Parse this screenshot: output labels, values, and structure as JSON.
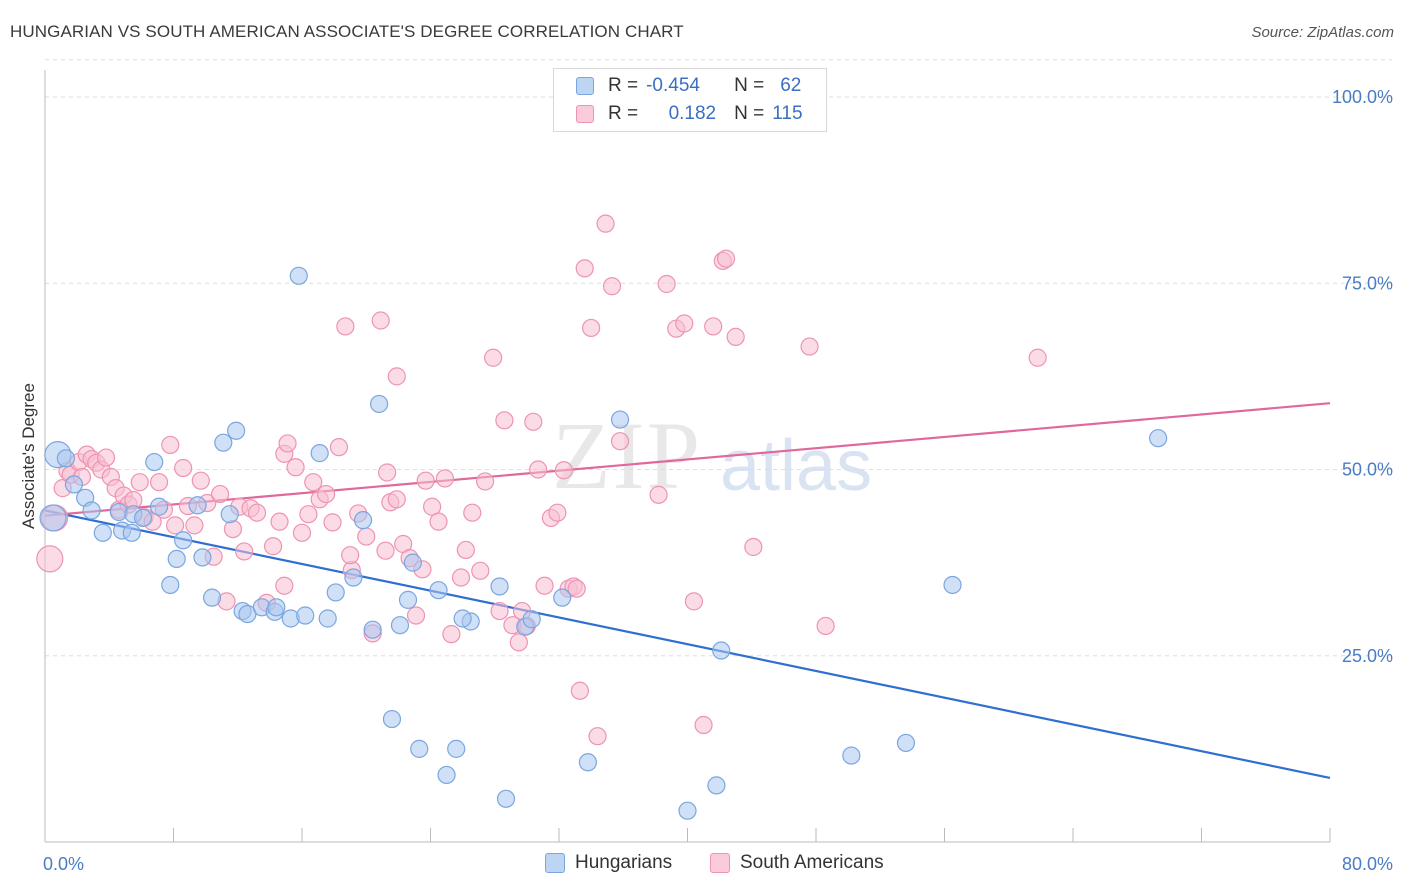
{
  "header": {
    "title": "HUNGARIAN VS SOUTH AMERICAN ASSOCIATE'S DEGREE CORRELATION CHART",
    "source": "Source: ZipAtlas.com"
  },
  "watermark": {
    "zip": "ZIP",
    "atlas": "atlas"
  },
  "legend_top": {
    "rows": [
      {
        "r_label": "R =",
        "r_value": "-0.454",
        "n_label": "N =",
        "n_value": "62",
        "color": "#a9c6ef"
      },
      {
        "r_label": "R =",
        "r_value": "0.182",
        "n_label": "N =",
        "n_value": "115",
        "color": "#f5b8cc"
      }
    ]
  },
  "legend_bottom": [
    {
      "label": "Hungarians",
      "color": "#a9c6ef"
    },
    {
      "label": "South Americans",
      "color": "#f5b8cc"
    }
  ],
  "colors": {
    "blue_fill": "#a9c6ef",
    "blue_stroke": "#7aa6e0",
    "blue_line": "#2e6fd1",
    "pink_fill": "#f7c0d2",
    "pink_stroke": "#ee93b2",
    "pink_line": "#e0689a",
    "tick_text": "#4a7cc4",
    "grid": "#dddddd"
  },
  "chart_data": {
    "type": "scatter",
    "title": "HUNGARIAN VS SOUTH AMERICAN ASSOCIATE'S DEGREE CORRELATION CHART",
    "xlabel": "",
    "ylabel": "Associate's Degree",
    "xlim": [
      0,
      80
    ],
    "ylim": [
      0,
      105
    ],
    "x_ticks_labels": [
      "0.0%",
      "80.0%"
    ],
    "y_ticks": [
      25,
      50,
      75,
      100
    ],
    "y_ticks_labels": [
      "25.0%",
      "50.0%",
      "75.0%",
      "100.0%"
    ],
    "grid": true,
    "legend_position": "top-center",
    "series": [
      {
        "name": "Hungarians",
        "r": -0.454,
        "n": 62,
        "trend": {
          "x": [
            0,
            80
          ],
          "y": [
            44.5,
            8.6
          ]
        },
        "points": [
          [
            0.5,
            43.5
          ],
          [
            0.8,
            52
          ],
          [
            1.3,
            51.5
          ],
          [
            1.8,
            48
          ],
          [
            2.5,
            46.2
          ],
          [
            2.9,
            44.5
          ],
          [
            3.6,
            41.5
          ],
          [
            4.6,
            44.3
          ],
          [
            4.8,
            41.8
          ],
          [
            5.4,
            41.5
          ],
          [
            5.5,
            44
          ],
          [
            6.1,
            43.5
          ],
          [
            6.8,
            51
          ],
          [
            7.1,
            45
          ],
          [
            7.8,
            34.5
          ],
          [
            8.2,
            38
          ],
          [
            8.6,
            40.5
          ],
          [
            9.5,
            45.2
          ],
          [
            9.8,
            38.2
          ],
          [
            10.4,
            32.8
          ],
          [
            11.1,
            53.6
          ],
          [
            11.5,
            44
          ],
          [
            11.9,
            55.2
          ],
          [
            12.3,
            31
          ],
          [
            12.6,
            30.6
          ],
          [
            13.5,
            31.5
          ],
          [
            14.3,
            30.9
          ],
          [
            15.3,
            30
          ],
          [
            15.8,
            76
          ],
          [
            16.2,
            30.4
          ],
          [
            17.1,
            52.2
          ],
          [
            17.6,
            30
          ],
          [
            18.1,
            33.5
          ],
          [
            19.2,
            35.5
          ],
          [
            19.8,
            43.2
          ],
          [
            20.4,
            28.5
          ],
          [
            20.8,
            58.8
          ],
          [
            21.6,
            16.5
          ],
          [
            22.1,
            29.1
          ],
          [
            23.3,
            12.5
          ],
          [
            22.9,
            37.5
          ],
          [
            24.5,
            33.8
          ],
          [
            25,
            9
          ],
          [
            25.6,
            12.5
          ],
          [
            26.5,
            29.6
          ],
          [
            28.3,
            34.3
          ],
          [
            28.7,
            5.8
          ],
          [
            29.9,
            28.9
          ],
          [
            30.3,
            29.9
          ],
          [
            32.2,
            32.8
          ],
          [
            33.8,
            10.7
          ],
          [
            35.8,
            56.7
          ],
          [
            40,
            4.2
          ],
          [
            41.8,
            7.6
          ],
          [
            42.1,
            25.7
          ],
          [
            50.2,
            11.6
          ],
          [
            53.6,
            13.3
          ],
          [
            56.5,
            34.5
          ],
          [
            69.3,
            54.2
          ],
          [
            22.6,
            32.5
          ],
          [
            14.4,
            31.5
          ],
          [
            26,
            30
          ]
        ]
      },
      {
        "name": "South Americans",
        "r": 0.182,
        "n": 115,
        "trend": {
          "x": [
            0,
            80
          ],
          "y": [
            43.8,
            58.9
          ]
        },
        "points": [
          [
            0.3,
            38
          ],
          [
            0.6,
            43.5
          ],
          [
            1.1,
            47.5
          ],
          [
            1.4,
            49.8
          ],
          [
            1.6,
            49.3
          ],
          [
            2.1,
            51
          ],
          [
            2.3,
            49
          ],
          [
            2.6,
            52
          ],
          [
            2.9,
            51.4
          ],
          [
            3.2,
            50.9
          ],
          [
            3.5,
            50
          ],
          [
            3.8,
            51.6
          ],
          [
            4.1,
            49
          ],
          [
            4.4,
            47.5
          ],
          [
            4.6,
            44.6
          ],
          [
            4.9,
            46.5
          ],
          [
            5.2,
            45.3
          ],
          [
            5.5,
            45.9
          ],
          [
            5.9,
            48.3
          ],
          [
            6.2,
            43.6
          ],
          [
            6.7,
            43
          ],
          [
            7.1,
            48.3
          ],
          [
            7.4,
            44.6
          ],
          [
            7.8,
            53.3
          ],
          [
            8.1,
            42.5
          ],
          [
            8.6,
            50.2
          ],
          [
            8.9,
            45.1
          ],
          [
            9.3,
            42.5
          ],
          [
            9.7,
            48.5
          ],
          [
            10.1,
            45.5
          ],
          [
            10.5,
            38.3
          ],
          [
            10.9,
            46.7
          ],
          [
            11.3,
            32.3
          ],
          [
            11.7,
            42
          ],
          [
            12.1,
            45
          ],
          [
            12.4,
            39
          ],
          [
            12.8,
            44.8
          ],
          [
            13.2,
            44.2
          ],
          [
            13.8,
            32.1
          ],
          [
            14.2,
            39.7
          ],
          [
            14.6,
            43
          ],
          [
            14.9,
            52.1
          ],
          [
            15.1,
            53.5
          ],
          [
            15.6,
            50.3
          ],
          [
            16,
            41.5
          ],
          [
            16.4,
            44
          ],
          [
            16.7,
            48.3
          ],
          [
            17.1,
            46
          ],
          [
            17.5,
            46.7
          ],
          [
            17.9,
            42.9
          ],
          [
            18.3,
            53
          ],
          [
            18.7,
            69.2
          ],
          [
            19.1,
            36.5
          ],
          [
            19.5,
            44.1
          ],
          [
            20,
            41
          ],
          [
            20.4,
            28
          ],
          [
            20.9,
            70
          ],
          [
            21.3,
            49.6
          ],
          [
            21.5,
            45.6
          ],
          [
            21.9,
            62.5
          ],
          [
            22.3,
            40
          ],
          [
            22.7,
            38.1
          ],
          [
            23.1,
            30.4
          ],
          [
            23.5,
            36.6
          ],
          [
            23.7,
            48.5
          ],
          [
            24.1,
            45
          ],
          [
            24.5,
            43
          ],
          [
            24.9,
            48.8
          ],
          [
            25.3,
            27.9
          ],
          [
            25.9,
            35.5
          ],
          [
            26.2,
            39.2
          ],
          [
            26.6,
            44.2
          ],
          [
            27.1,
            36.4
          ],
          [
            27.4,
            48.4
          ],
          [
            27.9,
            65
          ],
          [
            28.3,
            31
          ],
          [
            28.6,
            56.6
          ],
          [
            29.1,
            29.1
          ],
          [
            29.5,
            26.8
          ],
          [
            30,
            29
          ],
          [
            30.4,
            56.4
          ],
          [
            30.7,
            50
          ],
          [
            31.1,
            34.4
          ],
          [
            31.5,
            43.5
          ],
          [
            31.9,
            44.2
          ],
          [
            32.3,
            49.9
          ],
          [
            32.6,
            34
          ],
          [
            32.9,
            34.3
          ],
          [
            33.3,
            20.3
          ],
          [
            33.6,
            77
          ],
          [
            34,
            69
          ],
          [
            34.4,
            14.2
          ],
          [
            34.9,
            83
          ],
          [
            35.3,
            74.6
          ],
          [
            35.8,
            53.8
          ],
          [
            38.2,
            46.6
          ],
          [
            38.7,
            74.9
          ],
          [
            39.3,
            68.9
          ],
          [
            39.8,
            69.6
          ],
          [
            40.4,
            32.3
          ],
          [
            41,
            15.7
          ],
          [
            41.6,
            69.2
          ],
          [
            42.2,
            78
          ],
          [
            42.4,
            78.3
          ],
          [
            43,
            67.8
          ],
          [
            44.1,
            39.6
          ],
          [
            47.6,
            66.5
          ],
          [
            48.6,
            29
          ],
          [
            61.8,
            65
          ],
          [
            19,
            38.5
          ],
          [
            14.9,
            34.4
          ],
          [
            21.2,
            39.1
          ],
          [
            33.1,
            34
          ],
          [
            29.7,
            31
          ],
          [
            21.9,
            46
          ]
        ]
      }
    ]
  }
}
